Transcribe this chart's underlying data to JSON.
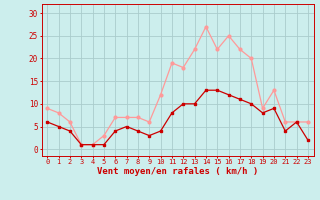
{
  "hours": [
    0,
    1,
    2,
    3,
    4,
    5,
    6,
    7,
    8,
    9,
    10,
    11,
    12,
    13,
    14,
    15,
    16,
    17,
    18,
    19,
    20,
    21,
    22,
    23
  ],
  "vent_moyen": [
    6,
    5,
    4,
    1,
    1,
    1,
    4,
    5,
    4,
    3,
    4,
    8,
    10,
    10,
    13,
    13,
    12,
    11,
    10,
    8,
    9,
    4,
    6,
    2
  ],
  "rafales": [
    9,
    8,
    6,
    1,
    1,
    3,
    7,
    7,
    7,
    6,
    12,
    19,
    18,
    22,
    27,
    22,
    25,
    22,
    20,
    9,
    13,
    6,
    6,
    6
  ],
  "color_moyen": "#cc0000",
  "color_rafales": "#ff9999",
  "bg_color": "#cceeed",
  "grid_color": "#aacccc",
  "xlabel": "Vent moyen/en rafales ( km/h )",
  "yticks": [
    0,
    5,
    10,
    15,
    20,
    25,
    30
  ],
  "ylim": [
    -1.5,
    32
  ],
  "xlim": [
    -0.5,
    23.5
  ]
}
